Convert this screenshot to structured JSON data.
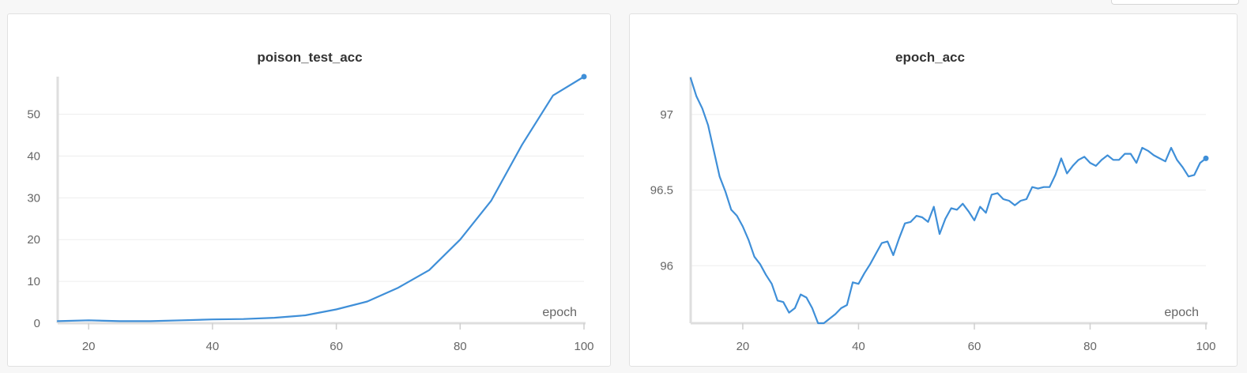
{
  "chart_data": [
    {
      "type": "line",
      "title": "poison_test_acc",
      "xlabel": "epoch",
      "ylabel": "",
      "xlim": [
        15,
        100
      ],
      "ylim": [
        0,
        59
      ],
      "xticks": [
        20,
        40,
        60,
        80,
        100
      ],
      "xtick_labels": [
        "20",
        "40",
        "60",
        "80",
        "100"
      ],
      "yticks": [
        0,
        10,
        20,
        30,
        40,
        50
      ],
      "ytick_labels": [
        "0",
        "10",
        "20",
        "30",
        "40",
        "50"
      ],
      "grid": true,
      "series": [
        {
          "color": "#3f8fd8",
          "x": [
            15,
            20,
            25,
            30,
            35,
            40,
            45,
            50,
            55,
            60,
            65,
            70,
            75,
            80,
            85,
            90,
            95,
            100
          ],
          "y": [
            0.5,
            0.7,
            0.5,
            0.5,
            0.7,
            0.9,
            1.0,
            1.3,
            1.9,
            3.3,
            5.2,
            8.5,
            12.7,
            20.0,
            29.3,
            42.7,
            54.5,
            59.0
          ]
        }
      ]
    },
    {
      "type": "line",
      "title": "epoch_acc",
      "xlabel": "epoch",
      "ylabel": "",
      "xlim": [
        11,
        100
      ],
      "ylim": [
        95.62,
        97.25
      ],
      "xticks": [
        20,
        40,
        60,
        80,
        100
      ],
      "xtick_labels": [
        "20",
        "40",
        "60",
        "80",
        "100"
      ],
      "yticks": [
        96,
        96.5,
        97
      ],
      "ytick_labels": [
        "96",
        "96.5",
        "97"
      ],
      "grid": true,
      "series": [
        {
          "color": "#3f8fd8",
          "x": [
            11,
            12,
            13,
            14,
            15,
            16,
            17,
            18,
            19,
            20,
            21,
            22,
            23,
            24,
            25,
            26,
            27,
            28,
            29,
            30,
            31,
            32,
            33,
            34,
            35,
            36,
            37,
            38,
            39,
            40,
            41,
            42,
            43,
            44,
            45,
            46,
            47,
            48,
            49,
            50,
            51,
            52,
            53,
            54,
            55,
            56,
            57,
            58,
            59,
            60,
            61,
            62,
            63,
            64,
            65,
            66,
            67,
            68,
            69,
            70,
            71,
            72,
            73,
            74,
            75,
            76,
            77,
            78,
            79,
            80,
            81,
            82,
            83,
            84,
            85,
            86,
            87,
            88,
            89,
            90,
            91,
            92,
            93,
            94,
            95,
            96,
            97,
            98,
            99,
            100
          ],
          "y": [
            97.24,
            97.12,
            97.04,
            96.93,
            96.76,
            96.59,
            96.49,
            96.37,
            96.33,
            96.26,
            96.17,
            96.06,
            96.01,
            95.94,
            95.88,
            95.77,
            95.76,
            95.69,
            95.72,
            95.81,
            95.79,
            95.72,
            95.62,
            95.62,
            95.65,
            95.68,
            95.72,
            95.74,
            95.89,
            95.88,
            95.95,
            96.01,
            96.08,
            96.15,
            96.16,
            96.07,
            96.18,
            96.28,
            96.29,
            96.33,
            96.32,
            96.29,
            96.39,
            96.21,
            96.31,
            96.38,
            96.37,
            96.41,
            96.36,
            96.3,
            96.39,
            96.35,
            96.47,
            96.48,
            96.44,
            96.43,
            96.4,
            96.43,
            96.44,
            96.52,
            96.51,
            96.52,
            96.52,
            96.6,
            96.71,
            96.61,
            96.66,
            96.7,
            96.72,
            96.68,
            96.66,
            96.7,
            96.73,
            96.7,
            96.7,
            96.74,
            96.74,
            96.68,
            96.78,
            96.76,
            96.73,
            96.71,
            96.69,
            96.78,
            96.7,
            96.65,
            96.59,
            96.6,
            96.68,
            96.71
          ]
        }
      ]
    }
  ]
}
